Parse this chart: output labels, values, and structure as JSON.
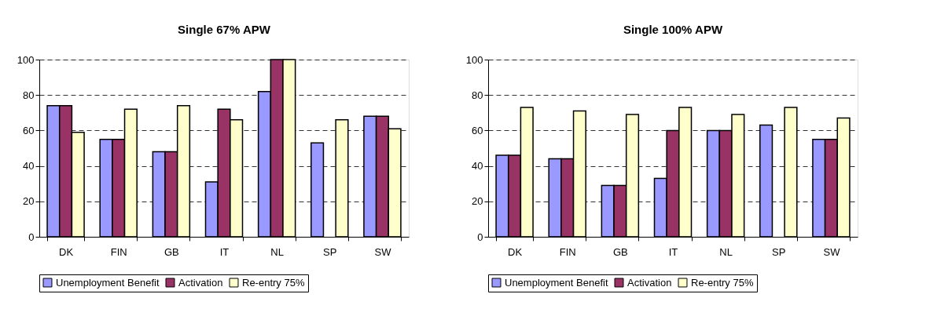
{
  "chart_data": [
    {
      "type": "bar",
      "title": "Single 67% APW",
      "categories": [
        "DK",
        "FIN",
        "GB",
        "IT",
        "NL",
        "SP",
        "SW"
      ],
      "ylim": [
        0,
        100
      ],
      "yticks": [
        0,
        20,
        40,
        60,
        80,
        100
      ],
      "grid": "y",
      "legend": "bottom",
      "series": [
        {
          "name": "Unemployment Benefit",
          "color": "#9999ff",
          "values": [
            74,
            55,
            48,
            31,
            82,
            53,
            68
          ]
        },
        {
          "name": "Activation",
          "color": "#993366",
          "values": [
            74,
            55,
            48,
            72,
            100,
            null,
            68
          ]
        },
        {
          "name": "Re-entry 75%",
          "color": "#ffffcc",
          "values": [
            59,
            72,
            74,
            66,
            100,
            66,
            61
          ]
        }
      ]
    },
    {
      "type": "bar",
      "title": "Single 100% APW",
      "categories": [
        "DK",
        "FIN",
        "GB",
        "IT",
        "NL",
        "SP",
        "SW"
      ],
      "ylim": [
        0,
        100
      ],
      "yticks": [
        0,
        20,
        40,
        60,
        80,
        100
      ],
      "grid": "y",
      "legend": "bottom",
      "series": [
        {
          "name": "Unemployment Benefit",
          "color": "#9999ff",
          "values": [
            46,
            44,
            29,
            33,
            60,
            63,
            55
          ]
        },
        {
          "name": "Activation",
          "color": "#993366",
          "values": [
            46,
            44,
            29,
            60,
            60,
            null,
            55
          ]
        },
        {
          "name": "Re-entry 75%",
          "color": "#ffffcc",
          "values": [
            73,
            71,
            69,
            73,
            69,
            73,
            67
          ]
        }
      ]
    }
  ]
}
